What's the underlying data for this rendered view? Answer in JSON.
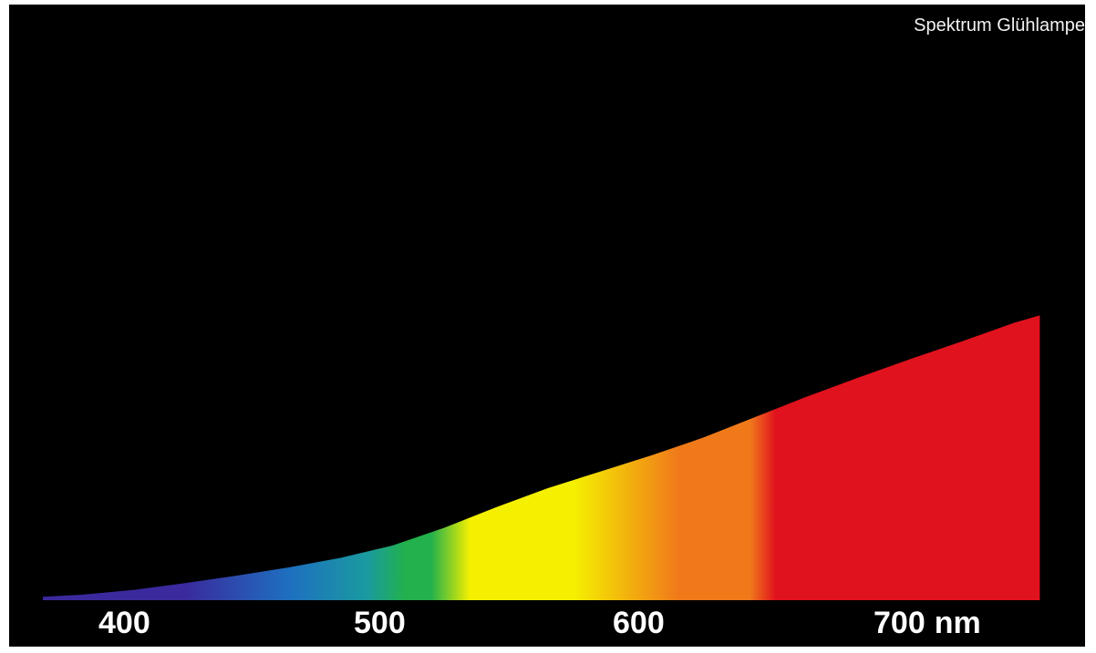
{
  "chart_data": {
    "type": "area",
    "title": "Spektrum Glühlampe",
    "x_unit": "nm",
    "xlim": [
      365,
      750
    ],
    "x_ticks": [
      400,
      500,
      600,
      700
    ],
    "grid": false,
    "series": [
      {
        "x": [
          365,
          380,
          400,
          420,
          440,
          460,
          480,
          500,
          520,
          540,
          560,
          580,
          600,
          620,
          640,
          660,
          680,
          700,
          720,
          740,
          750
        ],
        "y": [
          0.5,
          0.8,
          1.5,
          2.5,
          3.6,
          4.8,
          6.2,
          8.0,
          10.6,
          13.6,
          16.4,
          18.8,
          21.2,
          23.8,
          26.8,
          29.8,
          32.6,
          35.3,
          37.9,
          40.6,
          41.7
        ]
      }
    ],
    "colors": {
      "background": "#000000",
      "violet": "#3a2a9e",
      "blue": "#1e6fc0",
      "cyan": "#1a9aa0",
      "green": "#22b14c",
      "yellow": "#f5f000",
      "orange": "#f07a1a",
      "red": "#e0121e"
    }
  }
}
